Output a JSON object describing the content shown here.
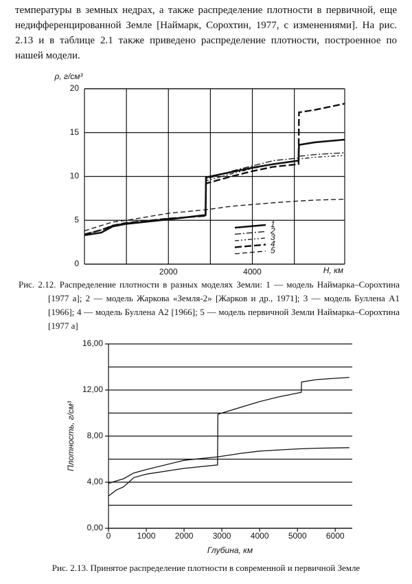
{
  "paragraph": "температуры в земных недрах, а также распределение плотности в первичной, еще недифференцированной Земле [Наймарк, Сорохтин, 1977, с изменениями]. На рис. 2.13 и в таблице 2.1 также приведено распределение плотности, построенное по нашей модели.",
  "chart_data": [
    {
      "type": "line",
      "x_label": "H, км",
      "y_label": "ρ, г/см³",
      "x": [
        0,
        400,
        670,
        1000,
        2000,
        2885,
        2895,
        3500,
        4000,
        4500,
        5100,
        5110,
        5500,
        6200
      ],
      "series": [
        {
          "name": "1",
          "color": "#111",
          "width": 2.6,
          "dash": "none",
          "values": [
            3.3,
            3.6,
            4.3,
            4.6,
            5.1,
            5.6,
            9.9,
            10.5,
            11.0,
            11.4,
            11.8,
            13.6,
            13.9,
            14.2
          ]
        },
        {
          "name": "2",
          "color": "#111",
          "width": 1.3,
          "dash": "9,3,2,3",
          "values": [
            3.4,
            3.9,
            4.4,
            4.7,
            5.2,
            5.5,
            9.7,
            10.6,
            11.2,
            11.8,
            12.1,
            12.3,
            12.5,
            12.7
          ]
        },
        {
          "name": "3",
          "color": "#111",
          "width": 1.3,
          "dash": "6,3,2,3,2,3",
          "values": [
            3.4,
            3.9,
            4.4,
            4.7,
            5.2,
            5.5,
            9.5,
            10.3,
            10.9,
            11.4,
            11.8,
            12.0,
            12.2,
            12.4
          ]
        },
        {
          "name": "4",
          "color": "#111",
          "width": 2.4,
          "dash": "10,4",
          "values": [
            3.4,
            3.9,
            4.4,
            4.7,
            5.2,
            5.5,
            9.2,
            10.0,
            10.6,
            11.1,
            11.4,
            17.3,
            17.6,
            18.3
          ]
        },
        {
          "name": "5",
          "color": "#111",
          "width": 1.3,
          "dash": "7,4",
          "values": [
            3.8,
            4.4,
            4.8,
            5.0,
            5.8,
            6.2,
            6.2,
            6.6,
            6.8,
            7.0,
            7.2,
            7.2,
            7.3,
            7.4
          ]
        }
      ],
      "xlim": [
        0,
        6200
      ],
      "xticks": [
        2000,
        4000
      ],
      "xgrid": [
        1000,
        3000,
        5000
      ],
      "ylim": [
        0,
        20
      ],
      "yticks": [
        0,
        5,
        10,
        15,
        20
      ],
      "grid": "both",
      "legend": "lower right",
      "caption": "Рис. 2.12. Распределение плотности в разных моделях Земли: 1 — модель Наймарка–Сорохтина [1977 а]; 2 — модель Жаркова «Земля-2» [Жарков и др., 1971]; 3 — модель Буллена А1 [1966]; 4 — модель Буллена А2 [1966]; 5 — модель первичной Земли Наймарка–Сорохтина [1977 а]"
    },
    {
      "type": "line",
      "x_label": "Глубина, км",
      "y_label": "Плотность, г/см³",
      "x": [
        0,
        200,
        400,
        670,
        1000,
        2000,
        2885,
        2895,
        3500,
        4000,
        4500,
        5100,
        5110,
        5500,
        6371
      ],
      "series": [
        {
          "color": "#111",
          "width": 1.3,
          "dash": "none",
          "values": [
            2.8,
            3.3,
            3.6,
            4.4,
            4.7,
            5.2,
            5.5,
            9.9,
            10.5,
            11.0,
            11.4,
            11.8,
            12.7,
            12.9,
            13.1
          ]
        },
        {
          "color": "#111",
          "width": 1.3,
          "dash": "none",
          "values": [
            3.9,
            4.1,
            4.3,
            4.8,
            5.1,
            5.9,
            6.2,
            6.2,
            6.5,
            6.7,
            6.8,
            6.9,
            6.9,
            6.95,
            7.0
          ]
        }
      ],
      "xlim": [
        0,
        6450
      ],
      "xticks": [
        0,
        1000,
        2000,
        3000,
        4000,
        5000,
        6000
      ],
      "ylim": [
        0,
        16
      ],
      "yticks": [
        {
          "value": 0,
          "label": "0,00"
        },
        {
          "value": 4,
          "label": "4,00"
        },
        {
          "value": 8,
          "label": "8,00"
        },
        {
          "value": 12,
          "label": "12,00"
        },
        {
          "value": 16,
          "label": "16,00"
        }
      ],
      "ygrid": [
        2,
        6,
        10,
        14
      ],
      "grid": "y",
      "caption": "Рис. 2.13. Принятое распределение плотности в современной и первичной Земле"
    }
  ]
}
